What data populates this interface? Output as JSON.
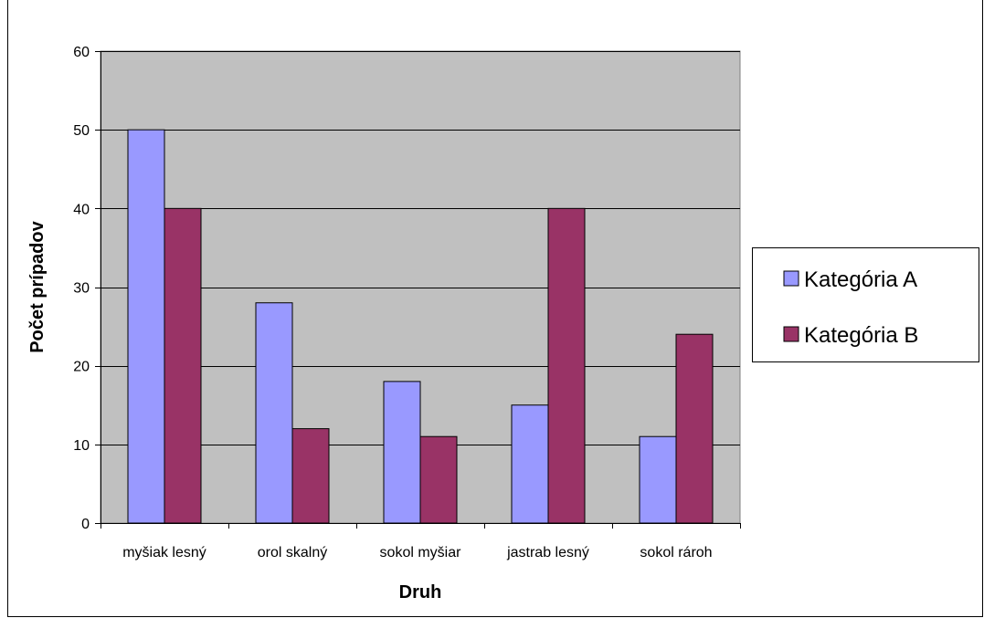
{
  "chart_data": {
    "type": "bar",
    "title": "",
    "xlabel": "Druh",
    "ylabel": "Počet prípadov",
    "categories": [
      "myšiak lesný",
      "orol skalný",
      "sokol myšiar",
      "jastrab lesný",
      "sokol rároh"
    ],
    "series": [
      {
        "name": "Kategória A",
        "values": [
          50,
          28,
          18,
          15,
          11
        ],
        "color": "#9999ff"
      },
      {
        "name": "Kategória B",
        "values": [
          40,
          12,
          11,
          40,
          24
        ],
        "color": "#993366"
      }
    ],
    "ylim": [
      0,
      60
    ],
    "yticks": [
      0,
      10,
      20,
      30,
      40,
      50,
      60
    ],
    "grid": true,
    "plot_background": "#c0c0c0",
    "legend_position": "right"
  }
}
